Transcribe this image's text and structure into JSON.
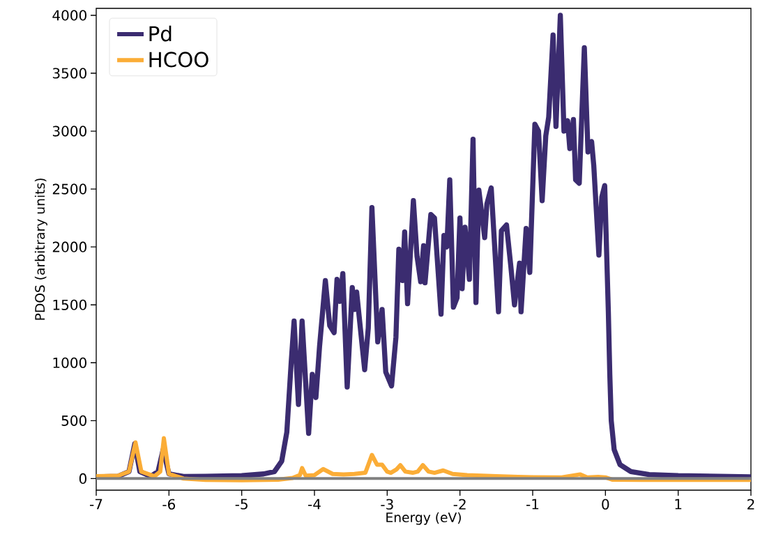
{
  "chart_data": {
    "type": "line",
    "xlabel": "Energy (eV)",
    "ylabel": "PDOS (arbitrary units)",
    "xlim": [
      -7,
      2
    ],
    "ylim": [
      -100,
      4060
    ],
    "xticks": [
      -7,
      -6,
      -5,
      -4,
      -3,
      -2,
      -1,
      0,
      1,
      2
    ],
    "yticks": [
      0,
      500,
      1000,
      1500,
      2000,
      2500,
      3000,
      3500,
      4000
    ],
    "grid": false,
    "legend": "top left",
    "marker": "none",
    "line_style": "solid",
    "ref_lines": [
      {
        "axis": "y",
        "value": 0,
        "color": "#808080"
      }
    ],
    "series": [
      {
        "name": "Pd",
        "color": "#3b2c70",
        "x": [
          -7,
          -6.7,
          -6.55,
          -6.47,
          -6.4,
          -6.25,
          -6.15,
          -6.08,
          -6.0,
          -5.8,
          -5.5,
          -5,
          -4.7,
          -4.55,
          -4.45,
          -4.38,
          -4.32,
          -4.28,
          -4.22,
          -4.17,
          -4.08,
          -4.03,
          -3.98,
          -3.93,
          -3.85,
          -3.79,
          -3.73,
          -3.69,
          -3.65,
          -3.61,
          -3.55,
          -3.48,
          -3.45,
          -3.42,
          -3.31,
          -3.26,
          -3.21,
          -3.13,
          -3.07,
          -3.02,
          -2.94,
          -2.88,
          -2.84,
          -2.79,
          -2.76,
          -2.72,
          -2.64,
          -2.59,
          -2.54,
          -2.5,
          -2.48,
          -2.4,
          -2.35,
          -2.26,
          -2.22,
          -2.18,
          -2.14,
          -2.09,
          -2.04,
          -2.0,
          -1.97,
          -1.93,
          -1.87,
          -1.82,
          -1.78,
          -1.74,
          -1.66,
          -1.63,
          -1.57,
          -1.47,
          -1.43,
          -1.36,
          -1.3,
          -1.25,
          -1.18,
          -1.16,
          -1.09,
          -1.04,
          -0.97,
          -0.92,
          -0.87,
          -0.82,
          -0.78,
          -0.72,
          -0.68,
          -0.62,
          -0.57,
          -0.52,
          -0.49,
          -0.44,
          -0.41,
          -0.36,
          -0.29,
          -0.24,
          -0.19,
          -0.16,
          -0.09,
          -0.05,
          -0.01,
          0.04,
          0.06,
          0.08,
          0.12,
          0.2,
          0.35,
          0.6,
          1.0,
          2.0
        ],
        "values": [
          15,
          20,
          60,
          300,
          60,
          20,
          60,
          250,
          40,
          18,
          20,
          25,
          40,
          60,
          150,
          400,
          1000,
          1360,
          640,
          1360,
          390,
          900,
          700,
          1140,
          1710,
          1320,
          1260,
          1720,
          1530,
          1770,
          790,
          1650,
          1460,
          1610,
          940,
          1300,
          2340,
          1180,
          1460,
          920,
          800,
          1220,
          1980,
          1710,
          2130,
          1510,
          2400,
          1920,
          1700,
          2010,
          1690,
          2280,
          2250,
          1420,
          2100,
          2000,
          2580,
          1480,
          1560,
          2250,
          1640,
          2170,
          1720,
          2930,
          1520,
          2490,
          2080,
          2370,
          2510,
          1440,
          2140,
          2190,
          1830,
          1500,
          1860,
          1440,
          2160,
          1780,
          3060,
          3000,
          2400,
          2960,
          3120,
          3830,
          3040,
          4000,
          3000,
          3090,
          2850,
          3100,
          2580,
          2550,
          3720,
          2820,
          2910,
          2700,
          1930,
          2430,
          2530,
          1440,
          900,
          500,
          250,
          120,
          60,
          35,
          25,
          15
        ]
      },
      {
        "name": "HCOO",
        "color": "#fbad37",
        "x": [
          -7,
          -6.7,
          -6.55,
          -6.46,
          -6.38,
          -6.2,
          -6.12,
          -6.07,
          -6.0,
          -5.8,
          -5.5,
          -5,
          -4.5,
          -4.3,
          -4.2,
          -4.17,
          -4.12,
          -4.0,
          -3.88,
          -3.75,
          -3.6,
          -3.45,
          -3.3,
          -3.21,
          -3.14,
          -3.07,
          -3.0,
          -2.95,
          -2.87,
          -2.82,
          -2.75,
          -2.65,
          -2.58,
          -2.51,
          -2.43,
          -2.35,
          -2.23,
          -2.1,
          -1.9,
          -1.7,
          -1.5,
          -1.2,
          -1.0,
          -0.6,
          -0.35,
          -0.25,
          -0.1,
          0,
          0.1,
          0.5,
          1.0,
          2.0
        ],
        "values": [
          20,
          25,
          60,
          312,
          60,
          20,
          60,
          348,
          40,
          0,
          -12,
          -15,
          -10,
          5,
          30,
          90,
          25,
          30,
          82,
          40,
          35,
          40,
          50,
          204,
          120,
          120,
          60,
          50,
          80,
          116,
          60,
          50,
          60,
          116,
          60,
          50,
          70,
          40,
          30,
          25,
          20,
          15,
          12,
          10,
          36,
          10,
          15,
          10,
          -10,
          -12,
          -12,
          -12
        ]
      }
    ]
  }
}
